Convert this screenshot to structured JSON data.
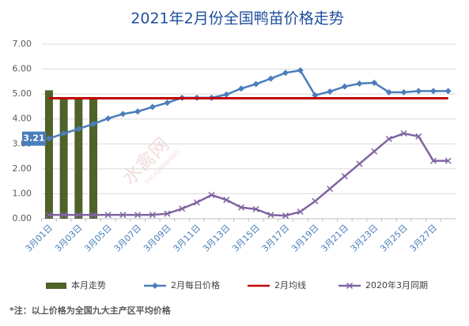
{
  "chart_data": {
    "type": "combo",
    "title": "2021年2月份全国鸭苗价格走势",
    "watermark": [
      "水禽网",
      "SHUIQINWANG"
    ],
    "note": "*注：以上价格为全国九大主产区平均价格",
    "categories": [
      "3月01日",
      null,
      "3月03日",
      null,
      "3月05日",
      null,
      "3月07日",
      null,
      "3月09日",
      null,
      "3月11日",
      null,
      "3月13日",
      null,
      "3月15日",
      null,
      "3月17日",
      null,
      "3月19日",
      null,
      "3月21日",
      null,
      "3月23日",
      null,
      "3月25日",
      null,
      "3月27日",
      null
    ],
    "ylim": [
      0,
      7
    ],
    "yticks": [
      {
        "value": 0,
        "label": "0.00"
      },
      {
        "value": 1,
        "label": "1.00"
      },
      {
        "value": 2,
        "label": "2.00"
      },
      {
        "value": 3,
        "label": "3.00"
      },
      {
        "value": 4,
        "label": "4.00"
      },
      {
        "value": 5,
        "label": "5.00"
      },
      {
        "value": 6,
        "label": "6.00"
      },
      {
        "value": 7,
        "label": "7.00"
      }
    ],
    "series": [
      {
        "name": "本月走势",
        "type": "bar",
        "color": "#4f6228",
        "values": [
          5.15,
          4.83,
          4.83,
          4.83,
          null,
          null,
          null,
          null,
          null,
          null,
          null,
          null,
          null,
          null,
          null,
          null,
          null,
          null,
          null,
          null,
          null,
          null,
          null,
          null,
          null,
          null,
          null,
          null
        ]
      },
      {
        "name": "2月每日价格",
        "type": "line",
        "marker": "diamond",
        "color": "#4a7ebb",
        "values": [
          3.21,
          3.42,
          3.6,
          3.8,
          4.02,
          4.2,
          4.3,
          4.48,
          4.65,
          4.85,
          4.85,
          4.85,
          4.98,
          5.22,
          5.4,
          5.62,
          5.85,
          5.95,
          4.95,
          5.1,
          5.3,
          5.42,
          5.45,
          5.07,
          5.07,
          5.12,
          5.12,
          5.12
        ],
        "value_labels": [
          "3.21",
          null,
          null,
          null,
          null,
          null,
          null,
          null,
          null,
          null,
          null,
          null,
          null,
          null,
          null,
          null,
          null,
          null,
          null,
          null,
          null,
          null,
          null,
          null,
          null,
          null,
          null,
          null
        ]
      },
      {
        "name": "2月均线",
        "type": "line",
        "marker": "none",
        "color": "#c00000",
        "values": [
          4.83,
          4.83,
          4.83,
          4.83,
          4.83,
          4.83,
          4.83,
          4.83,
          4.83,
          4.83,
          4.83,
          4.83,
          4.83,
          4.83,
          4.83,
          4.83,
          4.83,
          4.83,
          4.83,
          4.83,
          4.83,
          4.83,
          4.83,
          4.83,
          4.83,
          4.83,
          4.83,
          4.83
        ]
      },
      {
        "name": "2020年3月同期",
        "type": "line",
        "marker": "x",
        "color": "#8064a2",
        "values": [
          0.15,
          0.15,
          0.15,
          0.15,
          0.15,
          0.15,
          0.15,
          0.15,
          0.2,
          0.4,
          0.65,
          0.95,
          0.75,
          0.45,
          0.38,
          0.15,
          0.12,
          0.28,
          0.7,
          1.2,
          1.7,
          2.2,
          2.7,
          3.2,
          3.42,
          3.3,
          2.32,
          2.32
        ]
      }
    ]
  }
}
